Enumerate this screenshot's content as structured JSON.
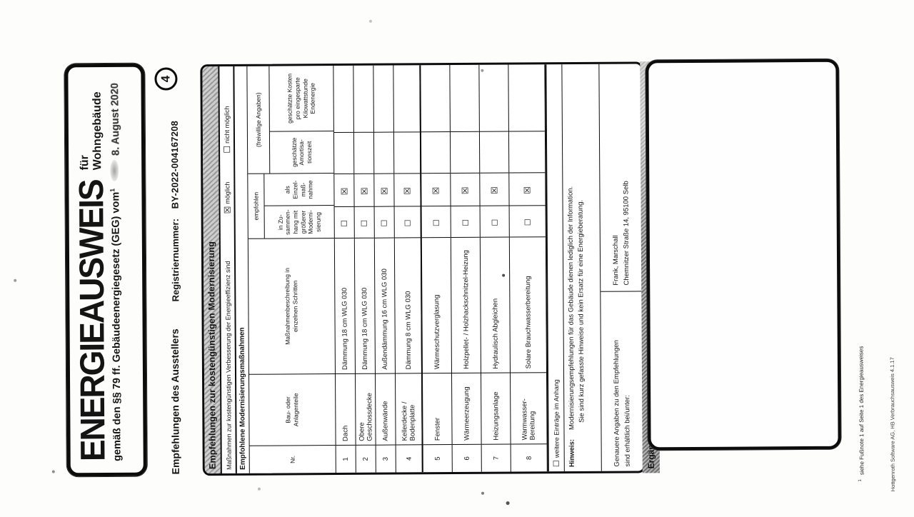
{
  "page": {
    "number": "4"
  },
  "title_box": {
    "title": "ENERGIEAUSWEIS",
    "subtitle": "für Wohngebäude",
    "law_line": "gemäß den §§ 79 ff. Gebäudeenergiegesetz (GEG) vom",
    "footnote_marker": "1",
    "date_stamp": "8. August 2020"
  },
  "meta": {
    "issuer_label": "Empfehlungen des Ausstellers",
    "register_label": "Registriernummer:",
    "register_value": "BY-2022-004167208"
  },
  "table": {
    "section_title": "Empfehlungen zur kostengünstigen Modernisierung",
    "possible_line": {
      "text": "Maßnahmen zur kostengünstigen Verbesserung der Energieeffizienz sind",
      "possible_mark": "☒",
      "option_possible": "möglich",
      "not_possible_mark": "☐",
      "option_not_possible": "nicht möglich"
    },
    "subsection_title": "Empfohlene Modernisierungsmaßnahmen",
    "columns": {
      "nr": "Nr.",
      "part": "Bau- oder\nAnlagenteile",
      "measure": "Maßnahmenbeschreibung in\neinzelnen Schritten",
      "recommended_group": "empfohlen",
      "in_context": "in Zu-\nsammen-\nhang mit\ngrößerer\nModerni-\nsierung",
      "single_measure": "als\nEinzel-\nmaß-\nnahme",
      "voluntary_group": "(freiwillige Angaben)",
      "amortization": "geschätzte\nAmortisa-\ntionszeit",
      "cost_per_kwh": "geschätzte Kosten\npro eingesparte\nKilowattstunde\nEndenergie"
    },
    "rows": [
      {
        "nr": "1",
        "part": "Dach",
        "measure": "Dämmung 18 cm WLG 030",
        "in_context_mark": "☐",
        "single_mark": "☒",
        "amortization": "",
        "cost": ""
      },
      {
        "nr": "2",
        "part": "Obere Geschossdecke",
        "measure": "Dämmung 18 cm WLG 030",
        "in_context_mark": "☐",
        "single_mark": "☒",
        "amortization": "",
        "cost": ""
      },
      {
        "nr": "3",
        "part": "Außenwände",
        "measure": "Außendämmung 16 cm WLG 030",
        "in_context_mark": "☐",
        "single_mark": "☒",
        "amortization": "",
        "cost": ""
      },
      {
        "nr": "4",
        "part": "Kellerdecke /\nBodenplatte",
        "measure": "Dämmung 8 cm WLG 030",
        "in_context_mark": "☐",
        "single_mark": "☒",
        "amortization": "",
        "cost": ""
      },
      {
        "nr": "5",
        "part": "Fenster",
        "measure": "Wärmeschutzverglasung",
        "in_context_mark": "☐",
        "single_mark": "☒",
        "amortization": "",
        "cost": ""
      },
      {
        "nr": "6",
        "part": "Wärmeerzeugung",
        "measure": "Holzpellet- / Holzhackschnitzel-Heizung",
        "in_context_mark": "☐",
        "single_mark": "☒",
        "amortization": "",
        "cost": ""
      },
      {
        "nr": "7",
        "part": "Heizungsanlage",
        "measure": "Hydraulisch Abgleichen",
        "in_context_mark": "☐",
        "single_mark": "☒",
        "amortization": "",
        "cost": ""
      },
      {
        "nr": "8",
        "part": "Warmwasser-\nBereitung",
        "measure": "Solare Brauchwasserbereitung",
        "in_context_mark": "☐",
        "single_mark": "☒",
        "amortization": "",
        "cost": ""
      }
    ],
    "more_entries_mark": "☐",
    "more_entries": "weitere Einträge im Anhang",
    "hint_label": "Hinweis:",
    "hint_line1": "Modernisierungsempfehlungen für das Gebäude dienen lediglich der Information.",
    "hint_line2": "Sie sind kurz gefasste Hinweise und kein Ersatz für eine Energieberatung.",
    "details_intro_line1": "Genauere Angaben zu den Empfehlungen",
    "details_intro_line2": "sind erhältlich bei/unter:",
    "details_name": "Frank, Marschall",
    "details_address": "Chemnitzer Straße 14, 95100 Selb"
  },
  "section2": {
    "title": "Ergänzende Erläuterungen zu den Angaben im Energieausweis (Angaben freiwillig)"
  },
  "footnotes": {
    "marker": "1",
    "footnote1": "siehe Fußnote 1 auf Seite 1 des Energieausweises",
    "software": "Hottgenroth Software AG, HB Verbrauchsausweis 4.1.17"
  }
}
